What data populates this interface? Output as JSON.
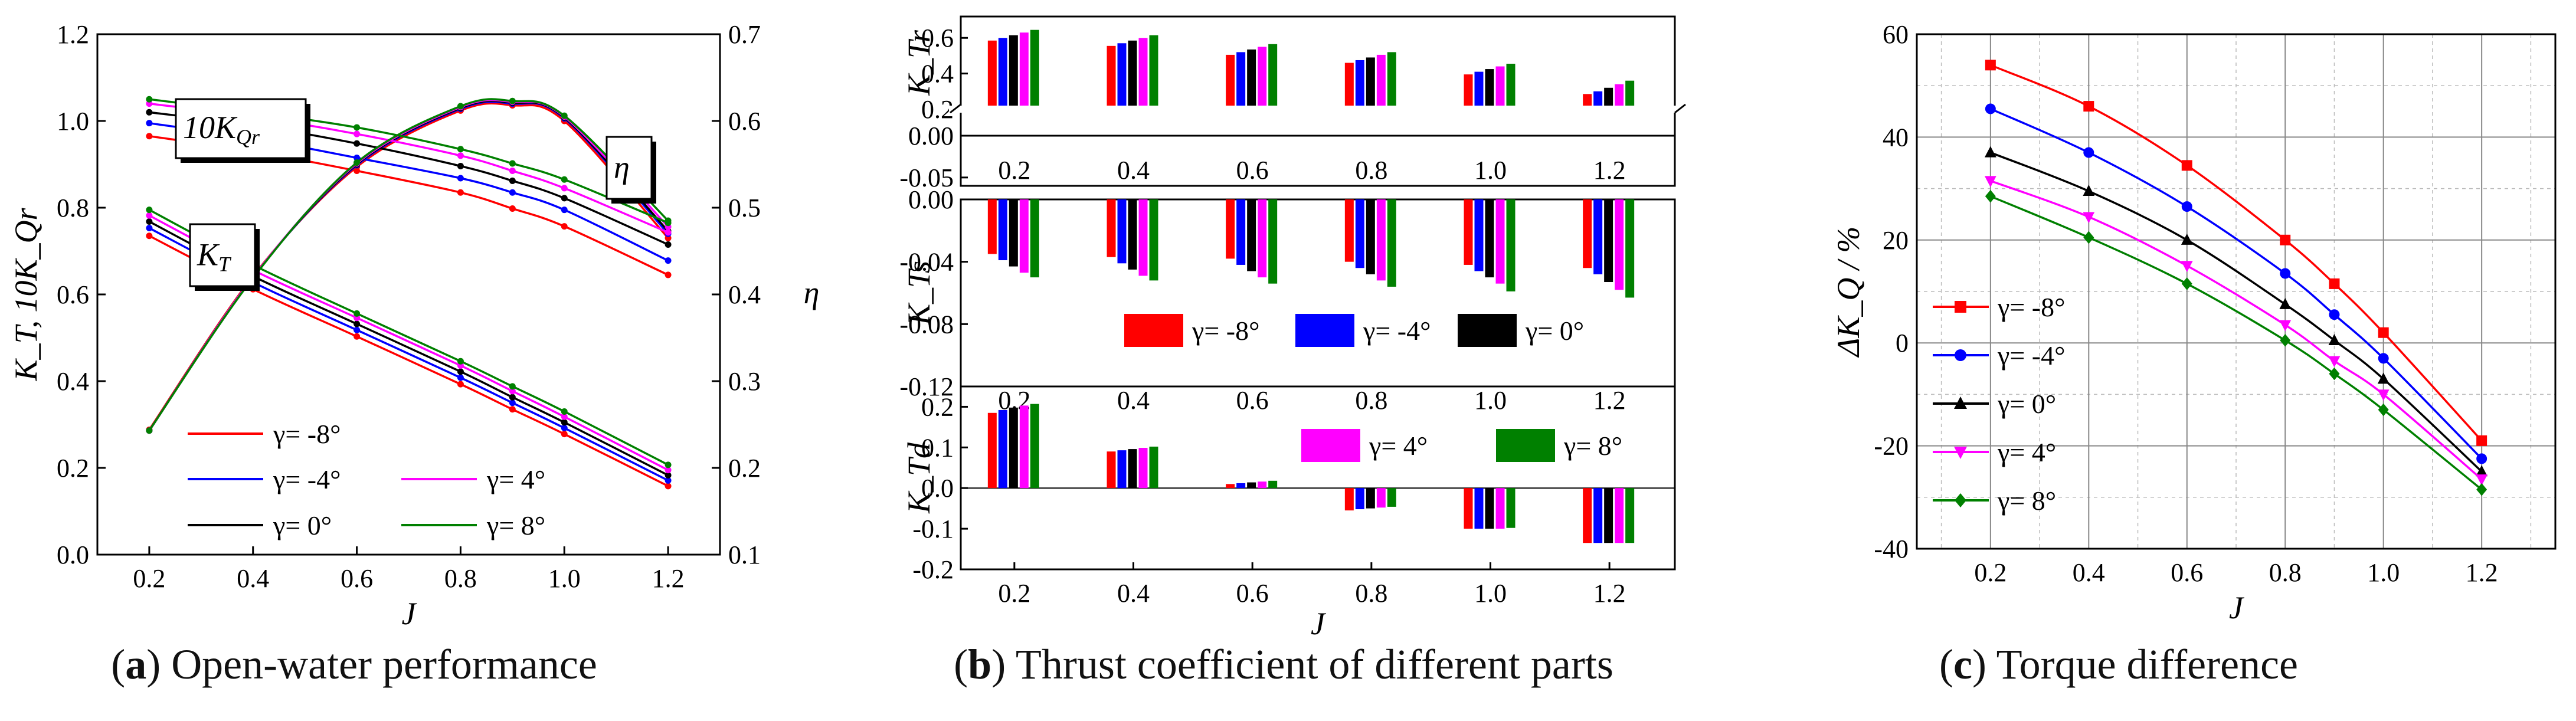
{
  "colors": {
    "gm8": "#ff0000",
    "gm4": "#0000ff",
    "g0": "#000000",
    "g4": "#ff00ff",
    "g8": "#008000"
  },
  "captions": {
    "a": {
      "letter": "a",
      "text": "Open-water performance"
    },
    "b": {
      "letter": "b",
      "text": "Thrust coefficient of different parts"
    },
    "c": {
      "letter": "c",
      "text": "Torque difference"
    }
  },
  "legend_labels": [
    "γ= -8°",
    "γ= -4°",
    "γ= 0°",
    "γ= 4°",
    "γ= 8°"
  ],
  "chart_data": [
    {
      "id": "a",
      "type": "line",
      "title": "Open-water performance",
      "xlabel": "J",
      "ylabel": "K_T, 10K_Qr",
      "y2label": "η",
      "xlim": [
        0.1,
        1.3
      ],
      "ylim": [
        0.0,
        1.2
      ],
      "y2lim": [
        0.1,
        0.7
      ],
      "xticks": [
        0.2,
        0.4,
        0.6,
        0.8,
        1.0,
        1.2
      ],
      "yticks": [
        0.0,
        0.2,
        0.4,
        0.6,
        0.8,
        1.0,
        1.2
      ],
      "y2ticks": [
        0.1,
        0.2,
        0.3,
        0.4,
        0.5,
        0.6,
        0.7
      ],
      "x": [
        0.2,
        0.4,
        0.6,
        0.8,
        0.9,
        1.0,
        1.2
      ],
      "annotations": [
        "10K_Qr",
        "K_T",
        "η"
      ],
      "series": [
        {
          "name": "γ= -8°",
          "color_key": "gm8",
          "KT": [
            0.735,
            0.612,
            0.503,
            0.393,
            0.335,
            0.278,
            0.158
          ],
          "KQ10": [
            0.965,
            0.93,
            0.885,
            0.835,
            0.798,
            0.757,
            0.645
          ],
          "eta": [
            0.244,
            0.421,
            0.547,
            0.612,
            0.618,
            0.6,
            0.465
          ]
        },
        {
          "name": "γ= -4°",
          "color_key": "gm4",
          "KT": [
            0.753,
            0.628,
            0.518,
            0.408,
            0.35,
            0.292,
            0.171
          ],
          "KQ10": [
            0.995,
            0.96,
            0.915,
            0.868,
            0.835,
            0.795,
            0.678
          ],
          "eta": [
            0.243,
            0.42,
            0.549,
            0.614,
            0.62,
            0.603,
            0.47
          ]
        },
        {
          "name": "γ= 0°",
          "color_key": "g0",
          "KT": [
            0.768,
            0.642,
            0.532,
            0.422,
            0.363,
            0.305,
            0.183
          ],
          "KQ10": [
            1.02,
            0.99,
            0.948,
            0.896,
            0.862,
            0.822,
            0.715
          ],
          "eta": [
            0.243,
            0.42,
            0.55,
            0.615,
            0.621,
            0.604,
            0.473
          ]
        },
        {
          "name": "γ= 4°",
          "color_key": "g4",
          "KT": [
            0.782,
            0.656,
            0.546,
            0.436,
            0.377,
            0.318,
            0.195
          ],
          "KQ10": [
            1.04,
            1.01,
            0.97,
            0.92,
            0.885,
            0.845,
            0.743
          ],
          "eta": [
            0.243,
            0.42,
            0.551,
            0.616,
            0.622,
            0.605,
            0.478
          ]
        },
        {
          "name": "γ= 8°",
          "color_key": "g8",
          "KT": [
            0.795,
            0.668,
            0.556,
            0.446,
            0.388,
            0.33,
            0.207
          ],
          "KQ10": [
            1.05,
            1.02,
            0.985,
            0.935,
            0.902,
            0.865,
            0.765
          ],
          "eta": [
            0.243,
            0.419,
            0.552,
            0.617,
            0.623,
            0.606,
            0.485
          ]
        }
      ]
    },
    {
      "id": "b",
      "type": "bar",
      "title": "Thrust coefficient of different parts",
      "xlabel": "J",
      "categories": [
        0.2,
        0.4,
        0.6,
        0.8,
        1.0,
        1.2
      ],
      "panels": [
        {
          "ylabel": "K_Tr",
          "upper_ylim": [
            0.2,
            0.72
          ],
          "upper_yticks": [
            0.2,
            0.4,
            0.6
          ],
          "lower_ylim": [
            -0.06,
            0.0
          ],
          "lower_yticks": [
            -0.05,
            0.0
          ],
          "values": [
            [
              0.585,
              0.6,
              0.615,
              0.63,
              0.645
            ],
            [
              0.555,
              0.57,
              0.585,
              0.6,
              0.615
            ],
            [
              0.505,
              0.52,
              0.535,
              0.55,
              0.565
            ],
            [
              0.46,
              0.475,
              0.49,
              0.505,
              0.52
            ],
            [
              0.395,
              0.41,
              0.425,
              0.44,
              0.455
            ],
            [
              0.285,
              0.3,
              0.32,
              0.34,
              0.36
            ]
          ]
        },
        {
          "ylabel": "K_Ts",
          "ylim": [
            -0.12,
            0.0
          ],
          "yticks": [
            -0.12,
            -0.08,
            -0.04,
            0.0
          ],
          "values": [
            [
              -0.035,
              -0.039,
              -0.043,
              -0.047,
              -0.05
            ],
            [
              -0.037,
              -0.041,
              -0.045,
              -0.049,
              -0.052
            ],
            [
              -0.038,
              -0.042,
              -0.046,
              -0.05,
              -0.054
            ],
            [
              -0.04,
              -0.044,
              -0.048,
              -0.052,
              -0.056
            ],
            [
              -0.042,
              -0.046,
              -0.05,
              -0.054,
              -0.059
            ],
            [
              -0.044,
              -0.048,
              -0.053,
              -0.058,
              -0.063
            ]
          ]
        },
        {
          "ylabel": "K_Td",
          "ylim": [
            -0.2,
            0.25
          ],
          "yticks": [
            -0.2,
            -0.1,
            0.0,
            0.1,
            0.2
          ],
          "values": [
            [
              0.185,
              0.192,
              0.198,
              0.203,
              0.207
            ],
            [
              0.09,
              0.093,
              0.096,
              0.099,
              0.102
            ],
            [
              0.01,
              0.012,
              0.014,
              0.016,
              0.018
            ],
            [
              -0.055,
              -0.052,
              -0.05,
              -0.048,
              -0.046
            ],
            [
              -0.1,
              -0.1,
              -0.1,
              -0.1,
              -0.098
            ],
            [
              -0.135,
              -0.135,
              -0.135,
              -0.135,
              -0.135
            ]
          ]
        }
      ],
      "legend_order": [
        "γ= -8°",
        "γ= -4°",
        "γ= 0°",
        "γ= 4°",
        "γ= 8°"
      ],
      "color_keys": [
        "gm8",
        "gm4",
        "g0",
        "g4",
        "g8"
      ]
    },
    {
      "id": "c",
      "type": "line",
      "title": "Torque difference",
      "xlabel": "J",
      "ylabel": "ΔK_Q / %",
      "xlim": [
        0.05,
        1.35
      ],
      "ylim": [
        -40,
        60
      ],
      "xticks": [
        0.2,
        0.4,
        0.6,
        0.8,
        1.0,
        1.2
      ],
      "yticks": [
        -40,
        -20,
        0,
        20,
        40,
        60
      ],
      "x": [
        0.2,
        0.4,
        0.6,
        0.8,
        0.9,
        1.0,
        1.2
      ],
      "series": [
        {
          "name": "γ= -8°",
          "color_key": "gm8",
          "marker": "square",
          "values": [
            54.0,
            46.0,
            34.5,
            20.0,
            11.5,
            2.0,
            -19.0
          ]
        },
        {
          "name": "γ= -4°",
          "color_key": "gm4",
          "marker": "circle",
          "values": [
            45.5,
            37.0,
            26.5,
            13.5,
            5.5,
            -3.0,
            -22.5
          ]
        },
        {
          "name": "γ= 0°",
          "color_key": "g0",
          "marker": "triangle",
          "values": [
            37.0,
            29.5,
            20.0,
            7.5,
            0.5,
            -7.0,
            -25.0
          ]
        },
        {
          "name": "γ= 4°",
          "color_key": "g4",
          "marker": "tri-down",
          "values": [
            31.5,
            24.5,
            15.0,
            3.5,
            -3.5,
            -10.0,
            -26.5
          ]
        },
        {
          "name": "γ= 8°",
          "color_key": "g8",
          "marker": "diamond",
          "values": [
            28.5,
            20.5,
            11.5,
            0.5,
            -6.0,
            -13.0,
            -28.5
          ]
        }
      ]
    }
  ]
}
